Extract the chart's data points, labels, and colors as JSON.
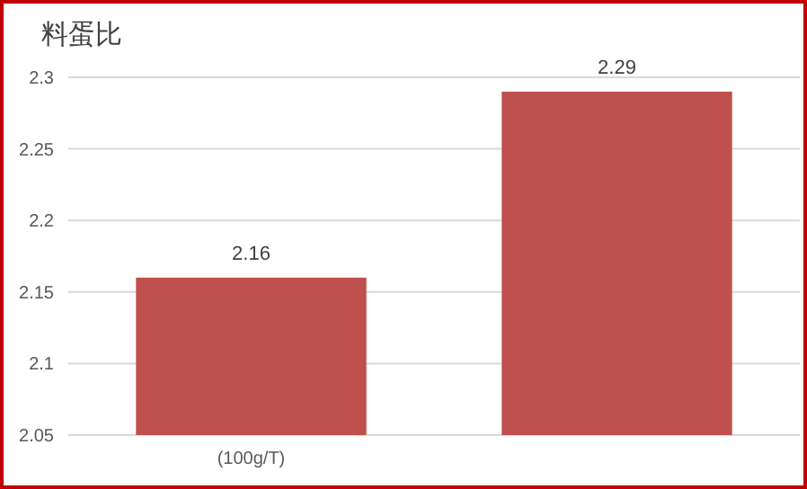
{
  "chart_data": {
    "type": "bar",
    "title": "料蛋比",
    "categories": [
      "(100g/T)",
      null
    ],
    "values": [
      2.16,
      2.29
    ],
    "color": "#c0504d",
    "ylim": [
      2.05,
      2.3
    ],
    "yticks": [
      2.05,
      2.1,
      2.15,
      2.2,
      2.25,
      2.3
    ],
    "grid": "y",
    "data_labels": true
  }
}
